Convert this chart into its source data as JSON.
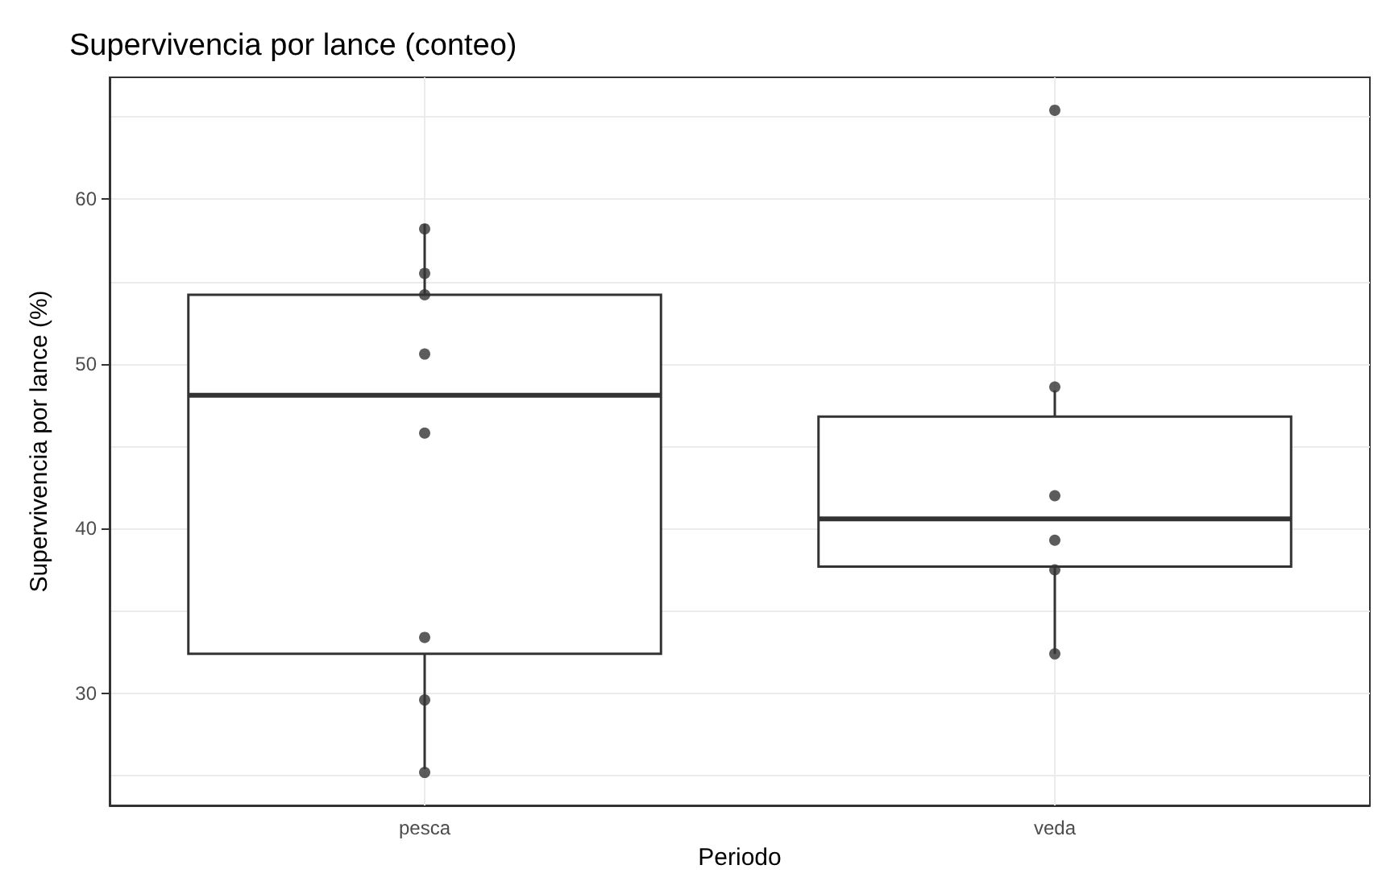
{
  "chart_data": {
    "type": "box",
    "title": "Supervivencia por lance (conteo)",
    "xlabel": "Periodo",
    "ylabel": "Supervivencia por lance (%)",
    "categories": [
      "pesca",
      "veda"
    ],
    "color": "#333333",
    "boxes": [
      {
        "low": 25.4,
        "q1": 32.4,
        "median": 48.1,
        "q3": 54.2,
        "high": 58.5
      },
      {
        "low": 32.4,
        "q1": 37.7,
        "median": 40.6,
        "q3": 46.8,
        "high": 48.4
      }
    ],
    "series": [
      {
        "type": "scatter",
        "color": "#333333",
        "x": [
          "pesca",
          "pesca",
          "pesca",
          "pesca",
          "pesca",
          "pesca",
          "pesca",
          "pesca",
          "veda",
          "veda",
          "veda",
          "veda",
          "veda",
          "veda"
        ],
        "values": [
          58.2,
          55.5,
          54.2,
          50.6,
          45.8,
          33.4,
          29.6,
          25.2,
          65.4,
          48.6,
          42.0,
          39.3,
          37.5,
          32.4
        ]
      }
    ],
    "ylim": [
      23.2,
      67.4
    ],
    "yticks": [
      {
        "value": 25,
        "label": null
      },
      30,
      {
        "value": 35,
        "label": null
      },
      40,
      {
        "value": 45,
        "label": null
      },
      50,
      {
        "value": 55,
        "label": null
      },
      60,
      {
        "value": 65,
        "label": null
      }
    ],
    "grid": true,
    "marker": "circle"
  }
}
